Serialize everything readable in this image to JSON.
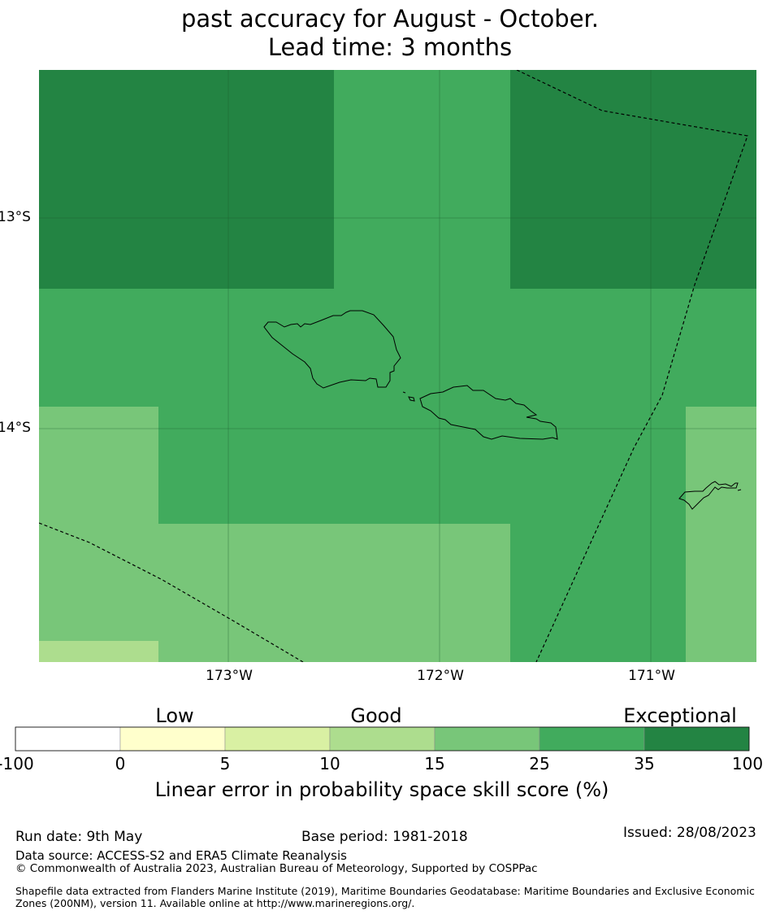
{
  "title": {
    "line1": "past accuracy for August - October.",
    "line2": "Lead time: 3 months"
  },
  "map": {
    "lat_labels": [
      "13°S",
      "14°S"
    ],
    "lon_labels": [
      "173°W",
      "172°W",
      "171°W"
    ]
  },
  "colorbar": {
    "categories": [
      "Low",
      "Good",
      "Exceptional"
    ],
    "ticks": [
      "-100",
      "0",
      "5",
      "10",
      "15",
      "25",
      "35",
      "100"
    ],
    "colors": [
      "#ffffff",
      "#ffffcc",
      "#d9f0a3",
      "#addd8e",
      "#78c679",
      "#41ab5d",
      "#238443"
    ],
    "label": "Linear error in probability space skill score (%)"
  },
  "footer": {
    "run_date": "Run date: 9th May",
    "base_period": "Base period: 1981-2018",
    "issued": "Issued: 28/08/2023",
    "data_source": "Data source: ACCESS-S2 and ERA5 Climate Reanalysis",
    "copyright": "© Commonwealth of Australia 2023, Australian Bureau of Meteorology, Supported by COSPPac",
    "shapefile": "Shapefile data extracted from Flanders Marine Institute (2019), Maritime Boundaries Geodatabase: Maritime Boundaries and Exclusive Economic Zones (200NM), version 11. Available online at http://www.marineregions.org/."
  }
}
